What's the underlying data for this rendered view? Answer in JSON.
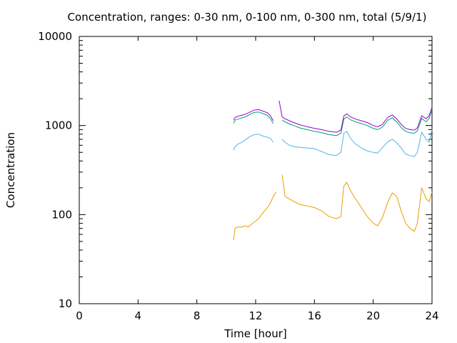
{
  "chart_data": {
    "type": "line",
    "title": "Concentration, ranges: 0-30 nm, 0-100 nm, 0-300 nm, total (5/9/1)",
    "xlabel": "Time [hour]",
    "ylabel": "Concentration",
    "x_ticks": [
      "0",
      "4",
      "8",
      "12",
      "16",
      "20",
      "24"
    ],
    "y_ticks": [
      "10",
      "100",
      "1000",
      "10000"
    ],
    "xlim": [
      0,
      24
    ],
    "ylim": [
      10,
      10000
    ],
    "y_scale": "log",
    "grid": false,
    "series": [
      {
        "color": "#e69f00",
        "points": [
          [
            10.5,
            52
          ],
          [
            10.6,
            70
          ],
          [
            10.8,
            73
          ],
          [
            11.0,
            72
          ],
          [
            11.3,
            75
          ],
          [
            11.5,
            73
          ],
          [
            11.8,
            80
          ],
          [
            12.0,
            85
          ],
          [
            12.2,
            90
          ],
          [
            12.5,
            105
          ],
          [
            12.8,
            120
          ],
          [
            13.0,
            135
          ],
          [
            13.2,
            160
          ],
          [
            13.4,
            180
          ],
          null,
          [
            13.8,
            280
          ],
          [
            14.0,
            160
          ],
          [
            14.3,
            150
          ],
          [
            14.6,
            140
          ],
          [
            15.0,
            130
          ],
          [
            15.5,
            125
          ],
          [
            16.0,
            120
          ],
          [
            16.5,
            110
          ],
          [
            17.0,
            95
          ],
          [
            17.5,
            90
          ],
          [
            17.8,
            95
          ],
          [
            18.0,
            210
          ],
          [
            18.2,
            230
          ],
          [
            18.5,
            180
          ],
          [
            18.8,
            150
          ],
          [
            19.2,
            120
          ],
          [
            19.6,
            95
          ],
          [
            20.0,
            80
          ],
          [
            20.3,
            75
          ],
          [
            20.6,
            90
          ],
          [
            21.0,
            140
          ],
          [
            21.3,
            175
          ],
          [
            21.6,
            160
          ],
          [
            21.9,
            110
          ],
          [
            22.2,
            80
          ],
          [
            22.5,
            70
          ],
          [
            22.8,
            65
          ],
          [
            23.0,
            80
          ],
          [
            23.3,
            200
          ],
          [
            23.6,
            150
          ],
          [
            23.8,
            140
          ],
          [
            24.0,
            180
          ]
        ]
      },
      {
        "color": "#56b4e9",
        "points": [
          [
            10.5,
            530
          ],
          [
            10.6,
            580
          ],
          [
            10.8,
            620
          ],
          [
            11.0,
            640
          ],
          [
            11.3,
            690
          ],
          [
            11.6,
            750
          ],
          [
            11.9,
            790
          ],
          [
            12.2,
            800
          ],
          [
            12.5,
            760
          ],
          [
            12.8,
            740
          ],
          [
            13.0,
            720
          ],
          [
            13.2,
            650
          ],
          null,
          [
            13.8,
            700
          ],
          [
            14.0,
            650
          ],
          [
            14.3,
            600
          ],
          [
            14.6,
            580
          ],
          [
            15.0,
            570
          ],
          [
            15.5,
            560
          ],
          [
            16.0,
            550
          ],
          [
            16.5,
            510
          ],
          [
            17.0,
            470
          ],
          [
            17.5,
            460
          ],
          [
            17.8,
            500
          ],
          [
            18.0,
            820
          ],
          [
            18.2,
            860
          ],
          [
            18.5,
            700
          ],
          [
            18.8,
            620
          ],
          [
            19.2,
            560
          ],
          [
            19.6,
            520
          ],
          [
            20.0,
            500
          ],
          [
            20.3,
            490
          ],
          [
            20.6,
            560
          ],
          [
            21.0,
            660
          ],
          [
            21.3,
            700
          ],
          [
            21.6,
            640
          ],
          [
            21.9,
            560
          ],
          [
            22.2,
            480
          ],
          [
            22.5,
            460
          ],
          [
            22.8,
            450
          ],
          [
            23.0,
            500
          ],
          [
            23.3,
            840
          ],
          [
            23.6,
            700
          ],
          [
            23.8,
            650
          ],
          [
            24.0,
            900
          ]
        ]
      },
      {
        "color": "#009e73",
        "points": [
          [
            10.5,
            1060
          ],
          [
            10.6,
            1150
          ],
          [
            10.8,
            1180
          ],
          [
            11.0,
            1210
          ],
          [
            11.3,
            1250
          ],
          [
            11.6,
            1330
          ],
          [
            11.9,
            1400
          ],
          [
            12.2,
            1420
          ],
          [
            12.5,
            1360
          ],
          [
            12.8,
            1300
          ],
          [
            13.0,
            1200
          ],
          [
            13.2,
            1050
          ],
          null,
          [
            13.8,
            1150
          ],
          [
            14.0,
            1100
          ],
          [
            14.3,
            1040
          ],
          [
            14.6,
            1000
          ],
          [
            15.0,
            940
          ],
          [
            15.5,
            900
          ],
          [
            16.0,
            860
          ],
          [
            16.5,
            830
          ],
          [
            17.0,
            790
          ],
          [
            17.5,
            770
          ],
          [
            17.8,
            820
          ],
          [
            18.0,
            1180
          ],
          [
            18.2,
            1250
          ],
          [
            18.5,
            1150
          ],
          [
            18.8,
            1100
          ],
          [
            19.2,
            1050
          ],
          [
            19.6,
            1000
          ],
          [
            20.0,
            930
          ],
          [
            20.3,
            900
          ],
          [
            20.6,
            950
          ],
          [
            21.0,
            1150
          ],
          [
            21.3,
            1220
          ],
          [
            21.6,
            1100
          ],
          [
            21.9,
            950
          ],
          [
            22.2,
            860
          ],
          [
            22.5,
            830
          ],
          [
            22.8,
            820
          ],
          [
            23.0,
            870
          ],
          [
            23.3,
            1200
          ],
          [
            23.6,
            1100
          ],
          [
            23.8,
            1200
          ],
          [
            24.0,
            1500
          ]
        ]
      },
      {
        "color": "#9400d3",
        "points": [
          [
            10.5,
            1150
          ],
          [
            10.6,
            1230
          ],
          [
            10.8,
            1270
          ],
          [
            11.0,
            1300
          ],
          [
            11.3,
            1340
          ],
          [
            11.6,
            1410
          ],
          [
            11.9,
            1490
          ],
          [
            12.2,
            1510
          ],
          [
            12.5,
            1450
          ],
          [
            12.8,
            1390
          ],
          [
            13.0,
            1290
          ],
          [
            13.2,
            1130
          ],
          null,
          [
            13.6,
            1900
          ],
          [
            13.8,
            1250
          ],
          [
            14.0,
            1190
          ],
          [
            14.3,
            1130
          ],
          [
            14.6,
            1080
          ],
          [
            15.0,
            1020
          ],
          [
            15.5,
            970
          ],
          [
            16.0,
            930
          ],
          [
            16.5,
            900
          ],
          [
            17.0,
            860
          ],
          [
            17.5,
            840
          ],
          [
            17.8,
            890
          ],
          [
            18.0,
            1280
          ],
          [
            18.2,
            1350
          ],
          [
            18.5,
            1240
          ],
          [
            18.8,
            1180
          ],
          [
            19.2,
            1130
          ],
          [
            19.6,
            1080
          ],
          [
            20.0,
            1000
          ],
          [
            20.3,
            970
          ],
          [
            20.6,
            1020
          ],
          [
            21.0,
            1240
          ],
          [
            21.3,
            1310
          ],
          [
            21.6,
            1190
          ],
          [
            21.9,
            1030
          ],
          [
            22.2,
            930
          ],
          [
            22.5,
            900
          ],
          [
            22.8,
            890
          ],
          [
            23.0,
            940
          ],
          [
            23.3,
            1290
          ],
          [
            23.6,
            1190
          ],
          [
            23.8,
            1290
          ],
          [
            24.0,
            1600
          ]
        ]
      }
    ]
  }
}
